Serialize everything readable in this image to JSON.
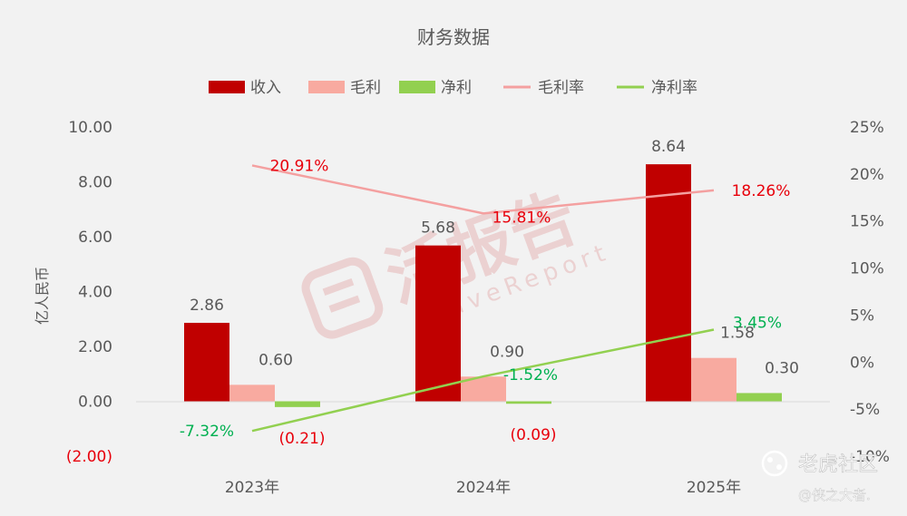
{
  "chart_data": {
    "type": "bar",
    "title": "财务数据",
    "ylabel": "亿人民币",
    "categories": [
      "2023年",
      "2024年",
      "2025年"
    ],
    "ylim": [
      -2,
      10
    ],
    "y2lim": [
      -10,
      25
    ],
    "yticks": [
      "(2.00)",
      "0.00",
      "2.00",
      "4.00",
      "6.00",
      "8.00",
      "10.00"
    ],
    "y2ticks": [
      "-10%",
      "-5%",
      "0%",
      "5%",
      "10%",
      "15%",
      "20%",
      "25%"
    ],
    "legend_position": "top",
    "grid": false,
    "series": [
      {
        "name": "收入",
        "kind": "bar",
        "color": "#c00000",
        "values": [
          2.86,
          5.68,
          8.64
        ],
        "labels": [
          "2.86",
          "5.68",
          "8.64"
        ]
      },
      {
        "name": "毛利",
        "kind": "bar",
        "color": "#f8aaa0",
        "values": [
          0.6,
          0.9,
          1.58
        ],
        "labels": [
          "0.60",
          "0.90",
          "1.58"
        ]
      },
      {
        "name": "净利",
        "kind": "bar",
        "color": "#92d050",
        "values": [
          -0.21,
          -0.09,
          0.3
        ],
        "labels": [
          "(0.21)",
          "(0.09)",
          "0.30"
        ]
      },
      {
        "name": "毛利率",
        "kind": "line",
        "axis": "right",
        "color": "#f4a0a0",
        "values": [
          20.91,
          15.81,
          18.26
        ],
        "labels": [
          "20.91%",
          "15.81%",
          "18.26%"
        ]
      },
      {
        "name": "净利率",
        "kind": "line",
        "axis": "right",
        "color": "#92d050",
        "values": [
          -7.32,
          -1.52,
          3.45
        ],
        "labels": [
          "-7.32%",
          "-1.52%",
          "3.45%"
        ]
      }
    ]
  },
  "watermark": {
    "brand": "活报告",
    "sub": "LiveReport"
  },
  "footer": {
    "community": "老虎社区",
    "author": "@侠之大者."
  },
  "colors": {
    "background": "#f2f2f2",
    "neg_label": "#e8000b",
    "pos_rate_label": "#00b050",
    "text": "#595959"
  }
}
